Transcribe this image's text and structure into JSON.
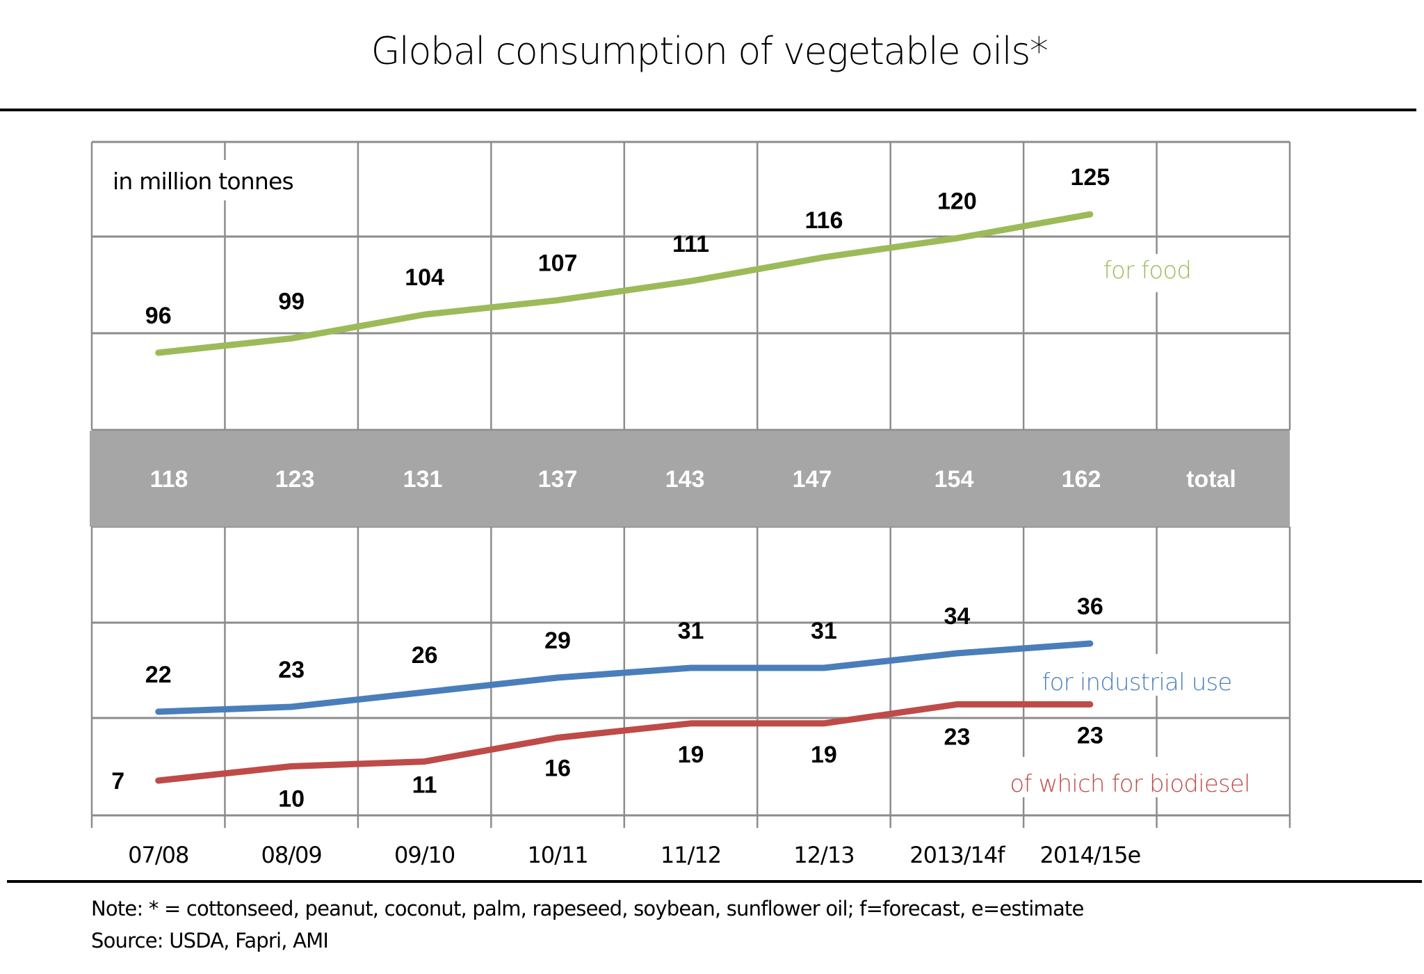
{
  "chart_data": {
    "type": "line",
    "title": "Global consumption of vegetable oils*",
    "unit_label": "in million tonnes",
    "categories": [
      "07/08",
      "08/09",
      "09/10",
      "10/11",
      "11/12",
      "12/13",
      "2013/14f",
      "2014/15e"
    ],
    "series": [
      {
        "name": "for food",
        "color": "#9bbb59",
        "values": [
          96,
          99,
          104,
          107,
          111,
          116,
          120,
          125
        ]
      },
      {
        "name": "for industrial use",
        "color": "#4a7ebb",
        "values": [
          22,
          23,
          26,
          29,
          31,
          31,
          34,
          36
        ]
      },
      {
        "name": "of which for biodiesel",
        "color": "#be4b48",
        "values": [
          7,
          10,
          11,
          16,
          19,
          19,
          23,
          23
        ]
      }
    ],
    "totals": {
      "label": "total",
      "values": [
        118,
        123,
        131,
        137,
        143,
        147,
        154,
        162
      ]
    },
    "xlabel": "",
    "ylabel": "",
    "grid": true,
    "legend": "inline-right",
    "note": "Note: * = cottonseed, peanut, coconut, palm, rapeseed, soybean, sunflower oil; f=forecast, e=estimate",
    "source": "Source:  USDA, Fapri, AMI"
  },
  "colors": {
    "grid": "#8c8c8c",
    "band": "#a6a6a6",
    "rule": "#000000"
  }
}
